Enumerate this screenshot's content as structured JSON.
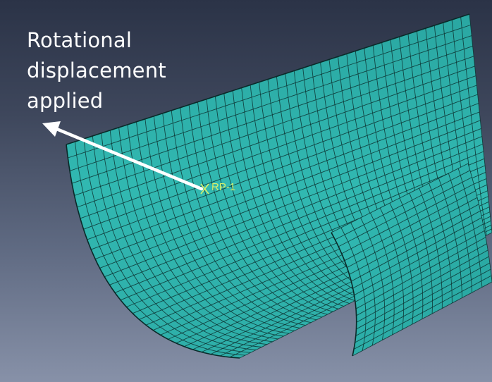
{
  "annotation": {
    "lines": [
      "Rotational",
      "displacement",
      "applied"
    ]
  },
  "reference_point": {
    "label": "RP-1",
    "marker": "x-cross-icon",
    "color": "#d8f06a"
  },
  "mesh": {
    "element_color": "#2fb3ad",
    "line_color": "#0d3433"
  },
  "arrow": {
    "color": "#ffffff"
  }
}
